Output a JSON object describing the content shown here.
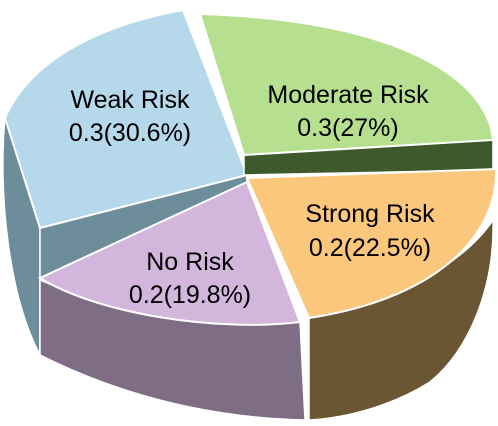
{
  "chart_data": {
    "type": "pie",
    "style": "3d-exploded",
    "slices": [
      {
        "name": "Weak Risk",
        "value": 0.3,
        "percent": "30.6%",
        "label": "0.3(30.6%)",
        "color": "#b5d8ea",
        "side_color": "#6e8d9b"
      },
      {
        "name": "Moderate Risk",
        "value": 0.3,
        "percent": "27%",
        "label": "0.3(27%)",
        "color": "#b6e08f",
        "side_color": "#3e5a2c"
      },
      {
        "name": "Strong Risk",
        "value": 0.2,
        "percent": "22.5%",
        "label": "0.2(22.5%)",
        "color": "#fbc77c",
        "side_color": "#6b5633"
      },
      {
        "name": "No Risk",
        "value": 0.2,
        "percent": "19.8%",
        "label": "0.2(19.8%)",
        "color": "#d3b6dc",
        "side_color": "#7e6d84"
      }
    ]
  }
}
